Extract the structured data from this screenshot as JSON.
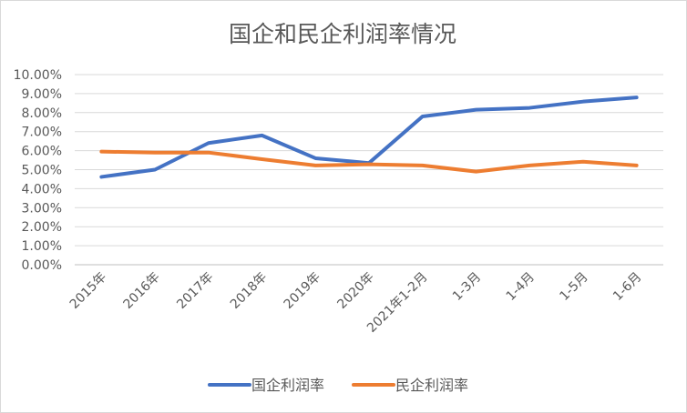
{
  "chart_data": {
    "type": "line",
    "title": "国企和民企利润率情况",
    "xlabel": "",
    "ylabel": "",
    "categories": [
      "2015年",
      "2016年",
      "2017年",
      "2018年",
      "2019年",
      "2020年",
      "2021年1-2月",
      "1-3月",
      "1-4月",
      "1-5月",
      "1-6月"
    ],
    "y_ticks": [
      "0.00%",
      "1.00%",
      "2.00%",
      "3.00%",
      "4.00%",
      "5.00%",
      "6.00%",
      "7.00%",
      "8.00%",
      "9.00%",
      "10.00%"
    ],
    "ylim": [
      0,
      10
    ],
    "y_unit": "%",
    "grid": true,
    "legend_position": "bottom",
    "series": [
      {
        "name": "国企利润率",
        "color": "#4472c4",
        "values": [
          4.62,
          5.0,
          6.4,
          6.8,
          5.6,
          5.35,
          7.8,
          8.15,
          8.25,
          8.58,
          8.8
        ]
      },
      {
        "name": "民企利润率",
        "color": "#ed7d31",
        "values": [
          5.95,
          5.9,
          5.9,
          5.55,
          5.22,
          5.28,
          5.22,
          4.9,
          5.22,
          5.42,
          5.22
        ]
      }
    ]
  }
}
